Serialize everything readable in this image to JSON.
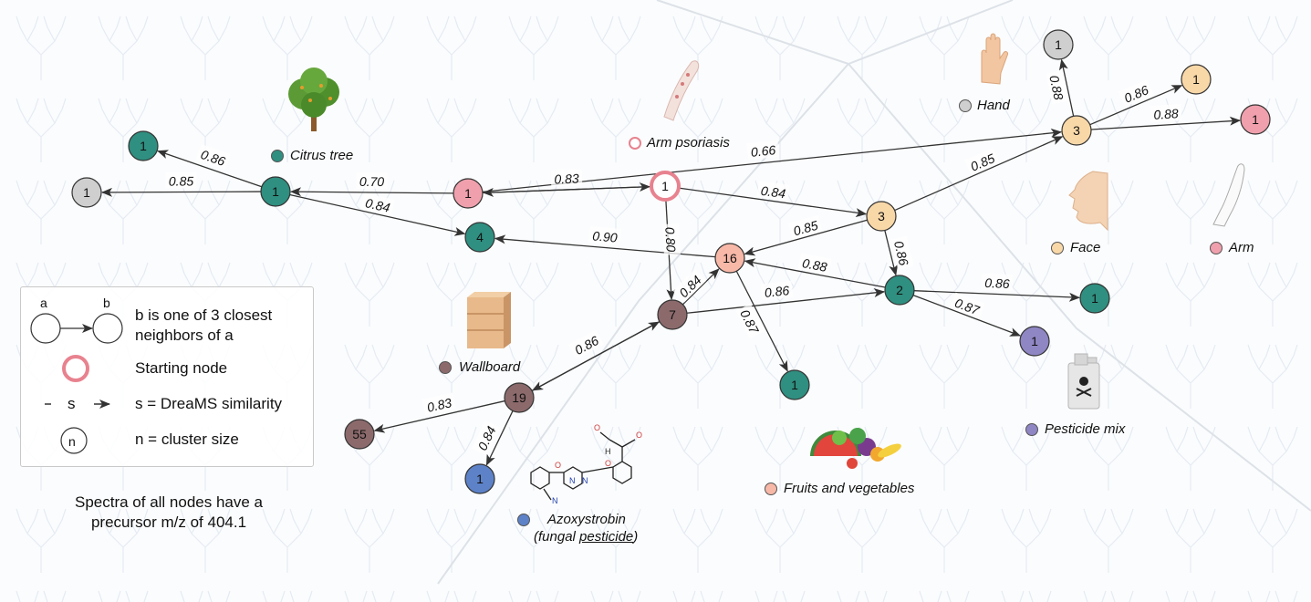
{
  "legend": {
    "node_a": "a",
    "node_b": "b",
    "closest_line1": "b is one of 3 closest",
    "closest_line2": "neighbors of a",
    "starting_node": "Starting node",
    "s_symbol": "s",
    "similarity": "s = DreaMS similarity",
    "n_symbol": "n",
    "cluster_size": "n = cluster size"
  },
  "footnote": {
    "line1": "Spectra of all nodes have a",
    "line2": "precursor m/z of 404.1"
  },
  "colors": {
    "teal": "#2f8f80",
    "grey": "#cfcfcf",
    "pink": "#f0a0ad",
    "peach": "#f9d8a8",
    "salmon": "#f7b8a8",
    "mauve": "#8c6a6c",
    "purple": "#8f86c4",
    "blue": "#5d82c8",
    "start_ring": "#e8828f"
  },
  "categories": [
    {
      "id": "citrus",
      "label": "Citrus tree",
      "color": "#2f8f80",
      "icon": "tree-icon"
    },
    {
      "id": "psoriasis",
      "label": "Arm psoriasis",
      "color": "#e8828f",
      "icon": "skin-icon",
      "ring": true
    },
    {
      "id": "hand",
      "label": "Hand",
      "color": "#cfcfcf",
      "icon": "hand-icon"
    },
    {
      "id": "face",
      "label": "Face",
      "color": "#f9d8a8",
      "icon": "face-icon"
    },
    {
      "id": "arm",
      "label": "Arm",
      "color": "#f0a0ad",
      "icon": "arm-icon"
    },
    {
      "id": "wallboard",
      "label": "Wallboard",
      "color": "#8c6a6c",
      "icon": "wallboard-icon"
    },
    {
      "id": "fruits",
      "label": "Fruits and vegetables",
      "color": "#f7b8a8",
      "icon": "fruit-icon"
    },
    {
      "id": "pesticide",
      "label": "Pesticide mix",
      "color": "#8f86c4",
      "icon": "pesticide-bottle-icon"
    }
  ],
  "azoxystrobin": {
    "name": "Azoxystrobin",
    "desc_prefix": "(fungal ",
    "desc_underlined": "pesticide",
    "desc_suffix": ")",
    "color": "#5d82c8"
  },
  "nodes": [
    {
      "id": "citrus_1",
      "label": "1",
      "color": "#2f8f80"
    },
    {
      "id": "teal_top",
      "label": "1",
      "color": "#2f8f80"
    },
    {
      "id": "grey_left",
      "label": "1",
      "color": "#cfcfcf"
    },
    {
      "id": "pink_mid",
      "label": "1",
      "color": "#f0a0ad"
    },
    {
      "id": "start",
      "label": "1",
      "color": "#ffffff",
      "start": true
    },
    {
      "id": "teal_4",
      "label": "4",
      "color": "#2f8f80"
    },
    {
      "id": "face_3b",
      "label": "3",
      "color": "#f9d8a8"
    },
    {
      "id": "face_3a",
      "label": "3",
      "color": "#f9d8a8"
    },
    {
      "id": "grey_top",
      "label": "1",
      "color": "#cfcfcf"
    },
    {
      "id": "peach_r",
      "label": "1",
      "color": "#f9d8a8"
    },
    {
      "id": "pink_r",
      "label": "1",
      "color": "#f0a0ad"
    },
    {
      "id": "salmon_16",
      "label": "16",
      "color": "#f7b8a8"
    },
    {
      "id": "mauve_7",
      "label": "7",
      "color": "#8c6a6c"
    },
    {
      "id": "teal_2",
      "label": "2",
      "color": "#2f8f80"
    },
    {
      "id": "teal_r1",
      "label": "1",
      "color": "#2f8f80"
    },
    {
      "id": "purple_1",
      "label": "1",
      "color": "#8f86c4"
    },
    {
      "id": "teal_low",
      "label": "1",
      "color": "#2f8f80"
    },
    {
      "id": "mauve_19",
      "label": "19",
      "color": "#8c6a6c"
    },
    {
      "id": "mauve_55",
      "label": "55",
      "color": "#8c6a6c"
    },
    {
      "id": "blue_1",
      "label": "1",
      "color": "#5d82c8"
    }
  ],
  "edges": [
    {
      "from": "citrus_1",
      "to": "teal_top",
      "s": "0.86"
    },
    {
      "from": "citrus_1",
      "to": "grey_left",
      "s": "0.85"
    },
    {
      "from": "pink_mid",
      "to": "citrus_1",
      "s": "0.70"
    },
    {
      "from": "citrus_1",
      "to": "teal_4",
      "s": "0.84"
    },
    {
      "from": "pink_mid",
      "to": "start",
      "s": "0.83"
    },
    {
      "from": "start",
      "to": "pink_mid",
      "s": ""
    },
    {
      "from": "pink_mid",
      "to": "face_3b",
      "s": "0.66"
    },
    {
      "from": "start",
      "to": "face_3a",
      "s": "0.84"
    },
    {
      "from": "start",
      "to": "mauve_7",
      "s": "0.80"
    },
    {
      "from": "salmon_16",
      "to": "teal_4",
      "s": "0.90"
    },
    {
      "from": "face_3a",
      "to": "salmon_16",
      "s": "0.85"
    },
    {
      "from": "face_3a",
      "to": "face_3b",
      "s": "0.85"
    },
    {
      "from": "face_3a",
      "to": "teal_2",
      "s": "0.86"
    },
    {
      "from": "teal_2",
      "to": "salmon_16",
      "s": "0.88"
    },
    {
      "from": "mauve_7",
      "to": "salmon_16",
      "s": "0.84"
    },
    {
      "from": "mauve_7",
      "to": "teal_2",
      "s": "0.86"
    },
    {
      "from": "salmon_16",
      "to": "teal_low",
      "s": "0.87"
    },
    {
      "from": "teal_2",
      "to": "teal_r1",
      "s": "0.86"
    },
    {
      "from": "teal_2",
      "to": "purple_1",
      "s": "0.87"
    },
    {
      "from": "face_3b",
      "to": "grey_top",
      "s": "0.88"
    },
    {
      "from": "face_3b",
      "to": "peach_r",
      "s": "0.86"
    },
    {
      "from": "face_3b",
      "to": "pink_r",
      "s": "0.88"
    },
    {
      "from": "mauve_19",
      "to": "mauve_7",
      "s": "0.86"
    },
    {
      "from": "mauve_7",
      "to": "mauve_19",
      "s": ""
    },
    {
      "from": "mauve_19",
      "to": "mauve_55",
      "s": "0.83"
    },
    {
      "from": "mauve_19",
      "to": "blue_1",
      "s": "0.84"
    }
  ]
}
